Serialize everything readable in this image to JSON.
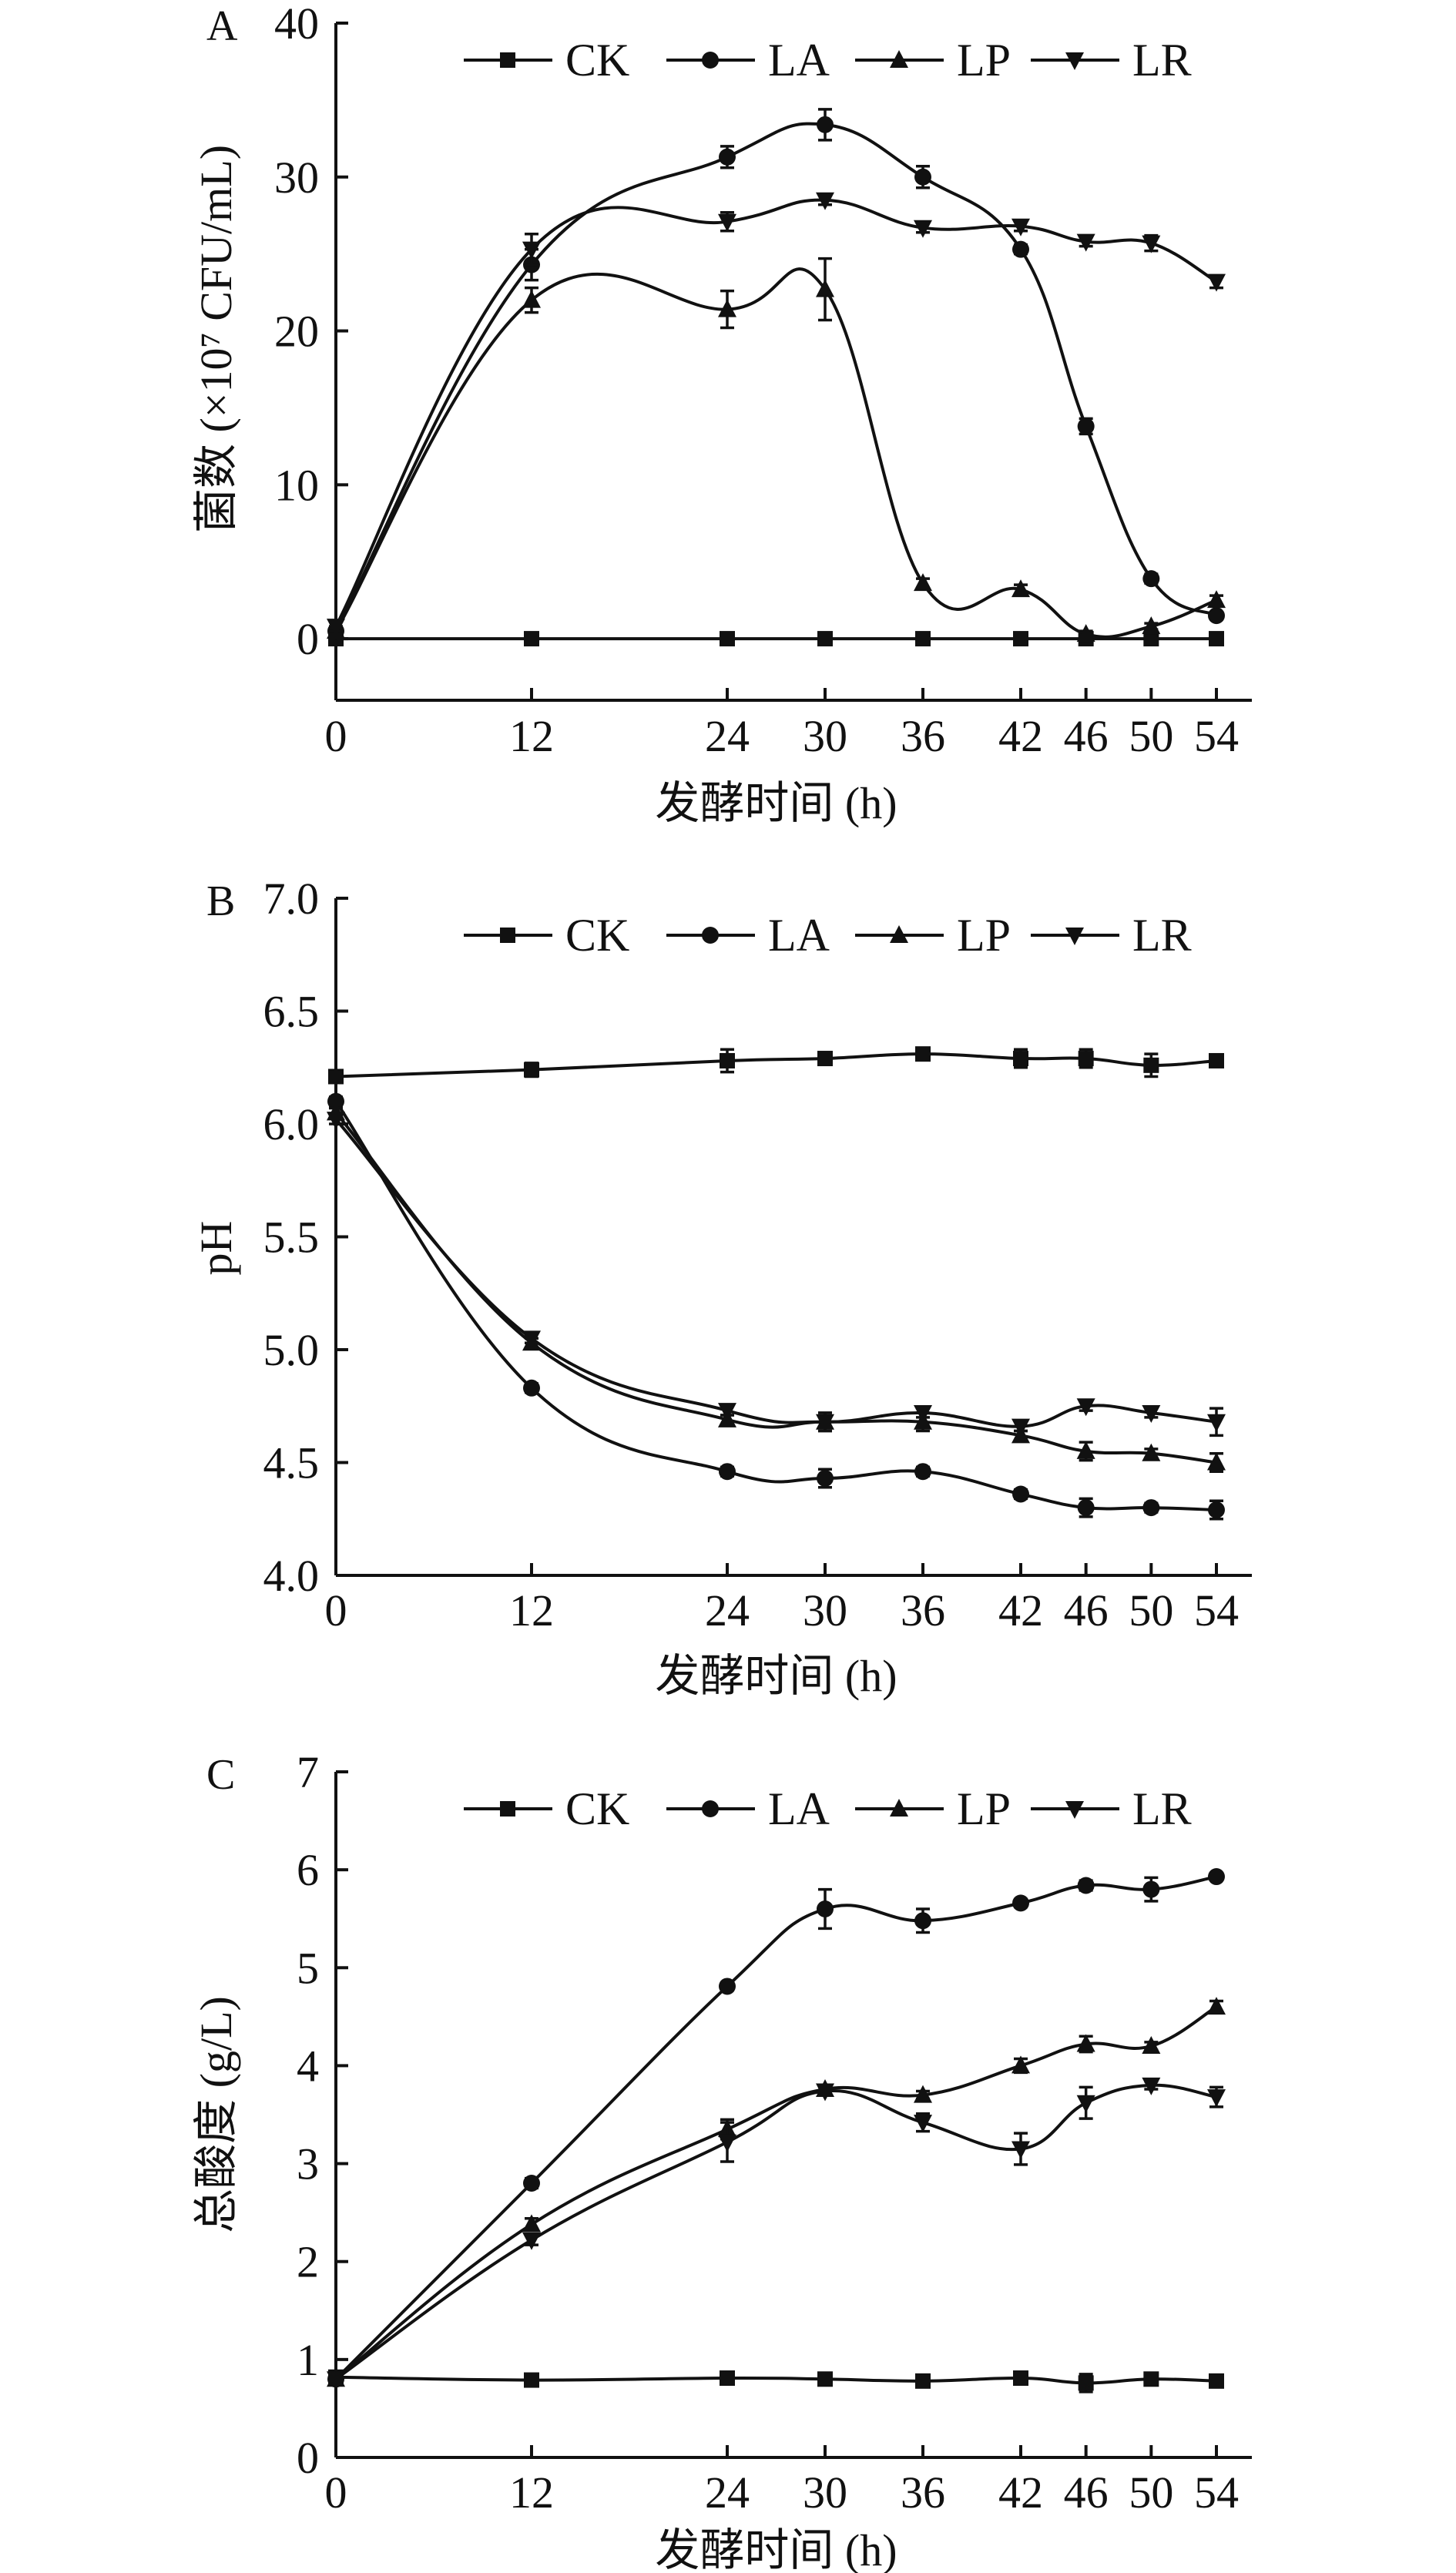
{
  "chart_data": [
    {
      "type": "line",
      "panel_label": "A",
      "xlabel": "发酵时间 (h)",
      "ylabel": "菌数 (×10⁷ CFU/mL)",
      "x": [
        0,
        12,
        24,
        30,
        36,
        42,
        46,
        50,
        54
      ],
      "x_tick_labels": [
        "0",
        "12",
        "24",
        "30",
        "36",
        "42",
        "46",
        "50",
        "54"
      ],
      "ylim": [
        -4,
        40
      ],
      "y_ticks": [
        0,
        10,
        20,
        30,
        40
      ],
      "y_tick_labels": [
        "0",
        "10",
        "20",
        "30",
        "40"
      ],
      "legend": [
        "CK",
        "LA",
        "LP",
        "LR"
      ],
      "legend_position": "top-right",
      "series": [
        {
          "name": "CK",
          "marker": "square",
          "values": [
            0,
            0,
            0,
            0,
            0,
            0,
            0,
            0,
            0
          ],
          "err": [
            0,
            0,
            0,
            0,
            0,
            0,
            0,
            0,
            0
          ]
        },
        {
          "name": "LA",
          "marker": "circle",
          "values": [
            0.5,
            24.3,
            31.3,
            33.4,
            30.0,
            25.3,
            13.8,
            3.9,
            1.5
          ],
          "err": [
            0.3,
            1.0,
            0.7,
            1.0,
            0.7,
            0.3,
            0.5,
            0.3,
            0.2
          ]
        },
        {
          "name": "LP",
          "marker": "triangle-up",
          "values": [
            0.5,
            22.0,
            21.4,
            22.7,
            3.6,
            3.2,
            0.3,
            0.8,
            2.5
          ],
          "err": [
            0.3,
            0.8,
            1.2,
            2.0,
            0.3,
            0.3,
            0.2,
            0.2,
            0.3
          ]
        },
        {
          "name": "LR",
          "marker": "triangle-down",
          "values": [
            0.8,
            25.3,
            27.1,
            28.5,
            26.7,
            26.8,
            25.8,
            25.7,
            23.2
          ],
          "err": [
            0.3,
            1.0,
            0.6,
            0.3,
            0.3,
            0.3,
            0.3,
            0.5,
            0.4
          ]
        }
      ]
    },
    {
      "type": "line",
      "panel_label": "B",
      "xlabel": "发酵时间 (h)",
      "ylabel": "pH",
      "x": [
        0,
        12,
        24,
        30,
        36,
        42,
        46,
        50,
        54
      ],
      "x_tick_labels": [
        "0",
        "12",
        "24",
        "30",
        "36",
        "42",
        "46",
        "50",
        "54"
      ],
      "ylim": [
        4.0,
        7.0
      ],
      "y_ticks": [
        4.0,
        4.5,
        5.0,
        5.5,
        6.0,
        6.5,
        7.0
      ],
      "y_tick_labels": [
        "4.0",
        "4.5",
        "5.0",
        "5.5",
        "6.0",
        "6.5",
        "7.0"
      ],
      "legend": [
        "CK",
        "LA",
        "LP",
        "LR"
      ],
      "legend_position": "top-right",
      "series": [
        {
          "name": "CK",
          "marker": "square",
          "values": [
            6.21,
            6.24,
            6.28,
            6.29,
            6.31,
            6.29,
            6.29,
            6.26,
            6.28
          ],
          "err": [
            0.02,
            0.03,
            0.05,
            0.02,
            0.02,
            0.04,
            0.04,
            0.05,
            0.02
          ]
        },
        {
          "name": "LA",
          "marker": "circle",
          "values": [
            6.1,
            4.83,
            4.46,
            4.43,
            4.46,
            4.36,
            4.3,
            4.3,
            4.29
          ],
          "err": [
            0.02,
            0.02,
            0.02,
            0.04,
            0.02,
            0.02,
            0.04,
            0.02,
            0.04
          ]
        },
        {
          "name": "LP",
          "marker": "triangle-up",
          "values": [
            6.05,
            5.03,
            4.69,
            4.68,
            4.68,
            4.62,
            4.55,
            4.54,
            4.5
          ],
          "err": [
            0.02,
            0.02,
            0.02,
            0.04,
            0.04,
            0.02,
            0.04,
            0.02,
            0.04
          ]
        },
        {
          "name": "LR",
          "marker": "triangle-down",
          "values": [
            6.02,
            5.05,
            4.73,
            4.68,
            4.72,
            4.66,
            4.75,
            4.72,
            4.68
          ],
          "err": [
            0.02,
            0.02,
            0.02,
            0.04,
            0.02,
            0.02,
            0.02,
            0.02,
            0.06
          ]
        }
      ]
    },
    {
      "type": "line",
      "panel_label": "C",
      "xlabel": "发酵时间 (h)",
      "ylabel": "总酸度 (g/L)",
      "x": [
        0,
        12,
        24,
        30,
        36,
        42,
        46,
        50,
        54
      ],
      "x_tick_labels": [
        "0",
        "12",
        "24",
        "30",
        "36",
        "42",
        "46",
        "50",
        "54"
      ],
      "ylim": [
        0,
        7
      ],
      "y_ticks": [
        0,
        1,
        2,
        3,
        4,
        5,
        6,
        7
      ],
      "y_tick_labels": [
        "0",
        "1",
        "2",
        "3",
        "4",
        "5",
        "6",
        "7"
      ],
      "legend": [
        "CK",
        "LA",
        "LP",
        "LR"
      ],
      "legend_position": "top-right",
      "series": [
        {
          "name": "CK",
          "marker": "square",
          "values": [
            0.82,
            0.79,
            0.81,
            0.8,
            0.78,
            0.81,
            0.76,
            0.8,
            0.78
          ],
          "err": [
            0.05,
            0.03,
            0.04,
            0.04,
            0.05,
            0.06,
            0.09,
            0.04,
            0.05
          ]
        },
        {
          "name": "LA",
          "marker": "circle",
          "values": [
            0.8,
            2.8,
            4.81,
            5.6,
            5.48,
            5.66,
            5.84,
            5.8,
            5.93
          ],
          "err": [
            0.05,
            0.05,
            0.04,
            0.2,
            0.12,
            0.04,
            0.05,
            0.12,
            0.03
          ]
        },
        {
          "name": "LP",
          "marker": "triangle-up",
          "values": [
            0.8,
            2.38,
            3.35,
            3.76,
            3.7,
            4.0,
            4.22,
            4.2,
            4.6
          ],
          "err": [
            0.05,
            0.06,
            0.1,
            0.04,
            0.04,
            0.07,
            0.08,
            0.04,
            0.06
          ]
        },
        {
          "name": "LR",
          "marker": "triangle-down",
          "values": [
            0.8,
            2.22,
            3.22,
            3.74,
            3.42,
            3.15,
            3.62,
            3.8,
            3.68
          ],
          "err": [
            0.05,
            0.05,
            0.2,
            0.04,
            0.09,
            0.16,
            0.16,
            0.04,
            0.1
          ]
        }
      ]
    }
  ]
}
